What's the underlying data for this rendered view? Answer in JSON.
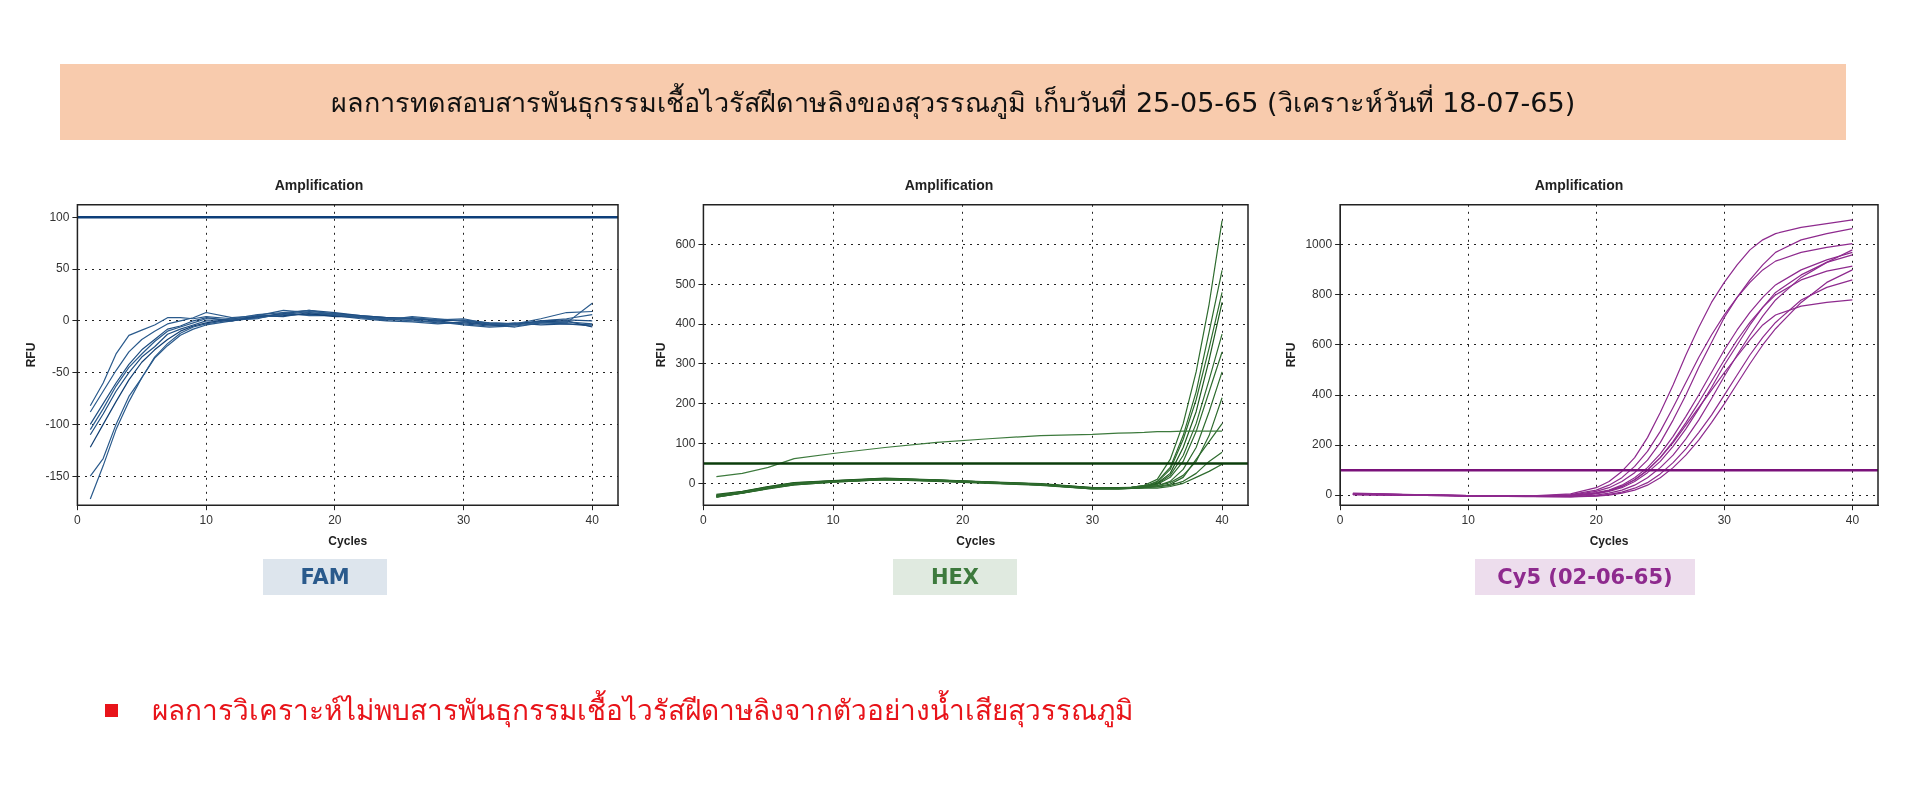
{
  "chart_data": [
    {
      "type": "other",
      "title": "ผลการทดสอบสารพันธุกรรมเชื้อไวรัสฝีดาษลิงของสุวรรณภูมิ เก็บวันที่ 25-05-65 (วิเคราะห์วันที่ 18-07-65)",
      "annotations": [
        "ผลการวิเคราะห์ไม่พบสารพันธุกรรมเชื้อไวรัสฝีดาษลิงจากตัวอย่างน้ำเสียสุวรรณภูมิ"
      ]
    },
    {
      "type": "line",
      "title": "Amplification",
      "xlabel": "Cycles",
      "ylabel": "RFU",
      "annotations": [
        "FAM"
      ],
      "xlim": [
        0,
        42
      ],
      "xticks": [
        0,
        10,
        20,
        30,
        40
      ],
      "ylim": [
        -178,
        112
      ],
      "yticks": [
        -150,
        -100,
        -50,
        0,
        50,
        100
      ],
      "grid": true,
      "legend": false,
      "marker": "none",
      "ref_lines": [
        {
          "axis": "y",
          "value": 100,
          "color": "#0d3f7a"
        }
      ],
      "x": [
        1,
        2,
        3,
        4,
        5,
        6,
        7,
        8,
        9,
        10,
        12,
        14,
        16,
        18,
        20,
        22,
        24,
        26,
        28,
        30,
        32,
        34,
        36,
        38,
        40
      ],
      "series": [
        {
          "color": "#2a5a8c",
          "values": [
            -82,
            -60,
            -32,
            -14,
            -9,
            -4,
            3,
            3,
            2,
            4,
            2,
            6,
            8,
            10,
            6,
            4,
            2,
            3,
            1,
            2,
            -3,
            -4,
            -1,
            -2,
            17
          ]
        },
        {
          "color": "#2a5a8c",
          "values": [
            -88,
            -68,
            -48,
            -30,
            -18,
            -10,
            -3,
            0,
            3,
            8,
            3,
            5,
            10,
            8,
            6,
            3,
            1,
            4,
            2,
            0,
            -2,
            -3,
            2,
            8,
            9
          ]
        },
        {
          "color": "#1f4e82",
          "values": [
            -100,
            -80,
            -60,
            -42,
            -28,
            -18,
            -8,
            -5,
            0,
            3,
            0,
            4,
            7,
            10,
            8,
            5,
            3,
            2,
            0,
            -3,
            -5,
            -4,
            0,
            1,
            0
          ]
        },
        {
          "color": "#2a5a8c",
          "values": [
            -105,
            -85,
            -63,
            -45,
            -32,
            -20,
            -10,
            -6,
            -2,
            2,
            1,
            3,
            6,
            9,
            7,
            4,
            2,
            0,
            -1,
            -4,
            -6,
            -5,
            -2,
            -1,
            -3
          ]
        },
        {
          "color": "#1f4e82",
          "values": [
            -110,
            -90,
            -68,
            -50,
            -35,
            -25,
            -13,
            -8,
            -4,
            0,
            0,
            5,
            4,
            8,
            5,
            3,
            1,
            1,
            -2,
            -2,
            -4,
            -2,
            -4,
            -3,
            -5
          ]
        },
        {
          "color": "#123f73",
          "values": [
            -122,
            -100,
            -78,
            -57,
            -40,
            -28,
            -18,
            -10,
            -5,
            -2,
            2,
            4,
            5,
            7,
            4,
            4,
            3,
            2,
            1,
            0,
            -3,
            -3,
            -1,
            0,
            -6
          ]
        },
        {
          "color": "#2a5a8c",
          "values": [
            -150,
            -133,
            -100,
            -73,
            -55,
            -35,
            -22,
            -12,
            -6,
            -3,
            1,
            2,
            8,
            5,
            5,
            2,
            0,
            -1,
            -3,
            -1,
            -4,
            -6,
            -2,
            -3,
            -4
          ]
        },
        {
          "color": "#2a5a8c",
          "values": [
            -172,
            -140,
            -105,
            -78,
            -55,
            -36,
            -24,
            -14,
            -8,
            -4,
            0,
            3,
            6,
            6,
            7,
            5,
            3,
            2,
            0,
            1,
            -2,
            -3,
            0,
            2,
            6
          ]
        }
      ]
    },
    {
      "type": "line",
      "title": "Amplification",
      "xlabel": "Cycles",
      "ylabel": "RFU",
      "annotations": [
        "HEX"
      ],
      "xlim": [
        0,
        42
      ],
      "xticks": [
        0,
        10,
        20,
        30,
        40
      ],
      "ylim": [
        -55,
        700
      ],
      "yticks": [
        0,
        100,
        200,
        300,
        400,
        500,
        600
      ],
      "grid": true,
      "legend": false,
      "marker": "none",
      "ref_lines": [
        {
          "axis": "y",
          "value": 50,
          "color": "#0b3d0b"
        }
      ],
      "x": [
        1,
        3,
        5,
        7,
        10,
        14,
        18,
        22,
        26,
        30,
        32,
        33,
        34,
        35,
        36,
        37,
        38,
        39,
        40
      ],
      "series": [
        {
          "color": "#3d7a3d",
          "values": [
            17,
            25,
            40,
            62,
            75,
            90,
            103,
            112,
            120,
            123,
            126,
            127,
            128,
            130,
            130,
            131,
            131,
            131,
            131
          ]
        },
        {
          "color": "#2e6b2e",
          "values": [
            -30,
            -22,
            -10,
            0,
            5,
            12,
            8,
            3,
            -2,
            -12,
            -12,
            -10,
            -5,
            10,
            60,
            150,
            280,
            450,
            660
          ]
        },
        {
          "color": "#2e6b2e",
          "values": [
            -32,
            -24,
            -12,
            -2,
            4,
            10,
            7,
            2,
            -3,
            -13,
            -13,
            -12,
            -8,
            5,
            40,
            120,
            230,
            380,
            535
          ]
        },
        {
          "color": "#2e6b2e",
          "values": [
            -35,
            -25,
            -14,
            -4,
            3,
            9,
            6,
            1,
            -4,
            -14,
            -14,
            -12,
            -8,
            3,
            35,
            110,
            210,
            340,
            480
          ]
        },
        {
          "color": "#1f5a1f",
          "values": [
            -28,
            -20,
            -8,
            2,
            7,
            13,
            9,
            4,
            -1,
            -11,
            -11,
            -10,
            -6,
            0,
            25,
            90,
            180,
            310,
            455
          ]
        },
        {
          "color": "#2e6b2e",
          "values": [
            -33,
            -23,
            -11,
            -1,
            5,
            11,
            7,
            2,
            -3,
            -12,
            -12,
            -11,
            -8,
            -2,
            20,
            70,
            150,
            260,
            375
          ]
        },
        {
          "color": "#2e6b2e",
          "values": [
            -31,
            -22,
            -10,
            0,
            6,
            12,
            8,
            3,
            -2,
            -12,
            -12,
            -11,
            -9,
            -3,
            15,
            55,
            130,
            230,
            330
          ]
        },
        {
          "color": "#2e6b2e",
          "values": [
            -34,
            -24,
            -12,
            -3,
            4,
            10,
            6,
            1,
            -4,
            -14,
            -14,
            -13,
            -10,
            -6,
            5,
            35,
            90,
            180,
            280
          ]
        },
        {
          "color": "#2e6b2e",
          "values": [
            -30,
            -21,
            -9,
            1,
            6,
            12,
            8,
            3,
            -2,
            -11,
            -11,
            -10,
            -9,
            -6,
            2,
            20,
            55,
            120,
            215
          ]
        },
        {
          "color": "#2e6b2e",
          "values": [
            -32,
            -23,
            -11,
            -2,
            5,
            11,
            7,
            2,
            -3,
            -12,
            -12,
            -12,
            -10,
            -8,
            -2,
            15,
            60,
            105,
            150
          ]
        },
        {
          "color": "#2e6b2e",
          "values": [
            -33,
            -24,
            -12,
            -3,
            4,
            10,
            6,
            1,
            -4,
            -13,
            -13,
            -12,
            -11,
            -9,
            -5,
            5,
            25,
            55,
            78
          ]
        },
        {
          "color": "#2e6b2e",
          "values": [
            -35,
            -25,
            -13,
            -4,
            3,
            9,
            5,
            0,
            -5,
            -14,
            -14,
            -13,
            -12,
            -12,
            -8,
            0,
            15,
            30,
            48
          ]
        }
      ]
    },
    {
      "type": "line",
      "title": "Amplification",
      "xlabel": "Cycles",
      "ylabel": "RFU",
      "annotations": [
        "Cy5 (02-06-65)"
      ],
      "xlim": [
        0,
        42
      ],
      "xticks": [
        0,
        10,
        20,
        30,
        40
      ],
      "ylim": [
        -40,
        1160
      ],
      "yticks": [
        0,
        200,
        400,
        600,
        800,
        1000
      ],
      "grid": true,
      "legend": false,
      "marker": "none",
      "ref_lines": [
        {
          "axis": "y",
          "value": 100,
          "color": "#7a127a"
        }
      ],
      "x": [
        1,
        5,
        10,
        15,
        18,
        20,
        21,
        22,
        23,
        24,
        25,
        26,
        27,
        28,
        29,
        30,
        31,
        32,
        33,
        34,
        36,
        38,
        40
      ],
      "series": [
        {
          "color": "#8e2a8e",
          "values": [
            5,
            2,
            -2,
            -3,
            5,
            30,
            55,
            95,
            150,
            230,
            330,
            440,
            560,
            670,
            770,
            850,
            920,
            980,
            1020,
            1045,
            1070,
            1085,
            1100
          ]
        },
        {
          "color": "#8e2a8e",
          "values": [
            5,
            2,
            -2,
            -4,
            0,
            15,
            30,
            55,
            90,
            140,
            210,
            300,
            400,
            510,
            610,
            710,
            790,
            860,
            920,
            970,
            1020,
            1045,
            1065
          ]
        },
        {
          "color": "#8e2a8e",
          "values": [
            8,
            3,
            -3,
            -5,
            2,
            20,
            40,
            70,
            115,
            175,
            255,
            350,
            450,
            550,
            640,
            720,
            790,
            850,
            900,
            935,
            970,
            990,
            1005
          ]
        },
        {
          "color": "#8e2a8e",
          "values": [
            3,
            1,
            -2,
            -5,
            -2,
            10,
            20,
            40,
            70,
            110,
            165,
            235,
            315,
            400,
            490,
            580,
            660,
            730,
            790,
            840,
            900,
            940,
            970
          ]
        },
        {
          "color": "#8e2a8e",
          "values": [
            6,
            2,
            -3,
            -6,
            -5,
            5,
            15,
            30,
            55,
            90,
            135,
            195,
            265,
            345,
            430,
            520,
            600,
            680,
            750,
            810,
            880,
            930,
            960
          ]
        },
        {
          "color": "#8e2a8e",
          "values": [
            2,
            0,
            -3,
            -5,
            -6,
            0,
            8,
            20,
            40,
            70,
            110,
            160,
            225,
            300,
            385,
            475,
            560,
            640,
            715,
            780,
            870,
            930,
            980
          ]
        },
        {
          "color": "#8e2a8e",
          "values": [
            4,
            1,
            -2,
            -4,
            -3,
            8,
            18,
            35,
            62,
            100,
            150,
            215,
            290,
            370,
            455,
            540,
            620,
            690,
            750,
            800,
            860,
            895,
            915
          ]
        },
        {
          "color": "#8e2a8e",
          "values": [
            3,
            0,
            -3,
            -5,
            -6,
            -3,
            3,
            12,
            28,
            50,
            85,
            130,
            185,
            250,
            320,
            400,
            480,
            560,
            630,
            690,
            780,
            830,
            860
          ]
        },
        {
          "color": "#8e2a8e",
          "values": [
            5,
            2,
            -2,
            -4,
            -3,
            8,
            18,
            35,
            62,
            100,
            150,
            210,
            280,
            350,
            420,
            490,
            555,
            620,
            680,
            720,
            755,
            770,
            780
          ]
        },
        {
          "color": "#8e2a8e",
          "values": [
            2,
            0,
            -3,
            -5,
            -7,
            -4,
            0,
            8,
            20,
            40,
            70,
            110,
            160,
            220,
            290,
            365,
            445,
            525,
            600,
            665,
            770,
            850,
            900
          ]
        }
      ]
    }
  ]
}
